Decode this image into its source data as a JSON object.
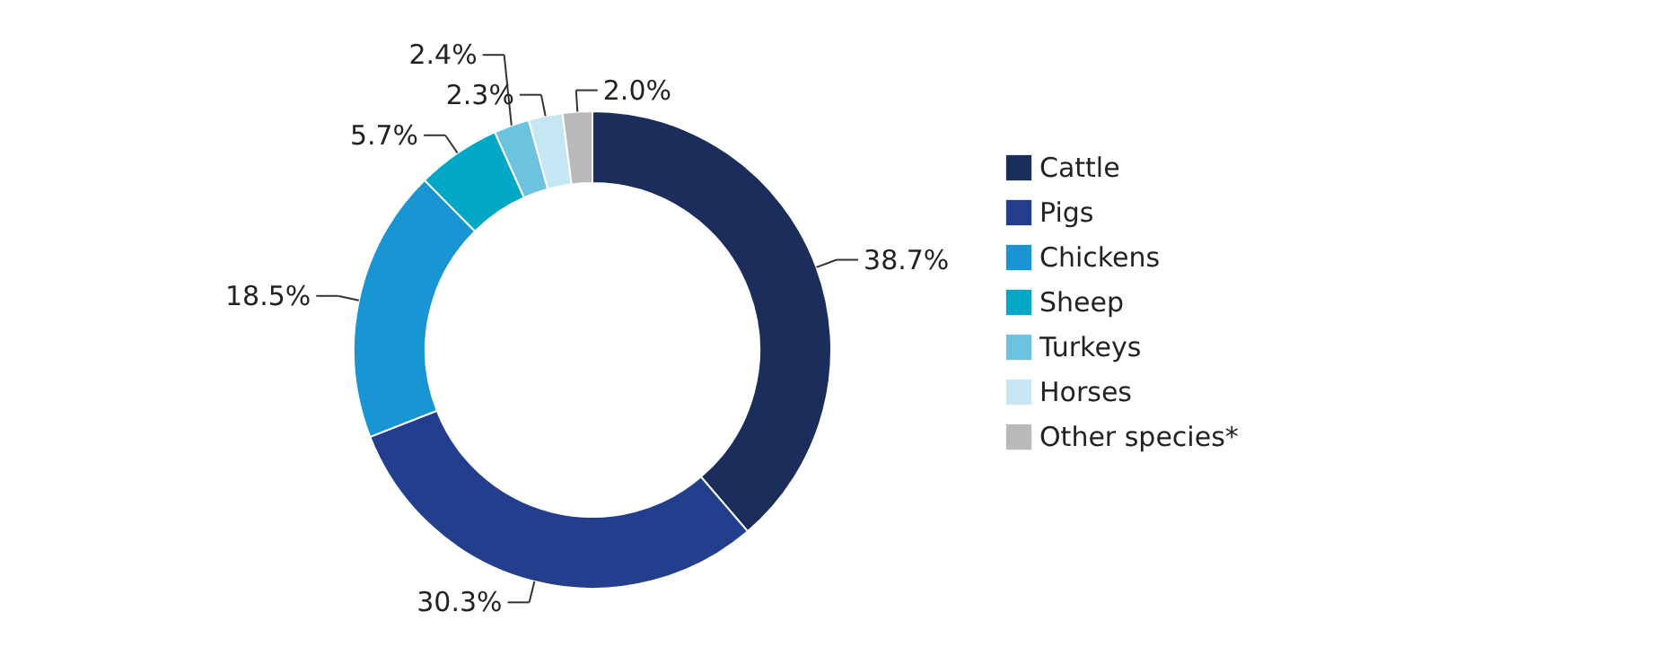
{
  "chart_data": {
    "type": "donut",
    "categories": [
      "Cattle",
      "Pigs",
      "Chickens",
      "Sheep",
      "Turkeys",
      "Horses",
      "Other species*"
    ],
    "values": [
      38.7,
      30.3,
      18.5,
      5.7,
      2.4,
      2.3,
      2.0
    ],
    "value_labels": [
      "38.7%",
      "30.3%",
      "18.5%",
      "5.7%",
      "2.4%",
      "2.3%",
      "2.0%"
    ],
    "colors": [
      "#1b2d5b",
      "#233e8c",
      "#1a95d3",
      "#00a8c6",
      "#6cc3dd",
      "#c5e6f2",
      "#b9b9bb"
    ],
    "legend": "right"
  }
}
